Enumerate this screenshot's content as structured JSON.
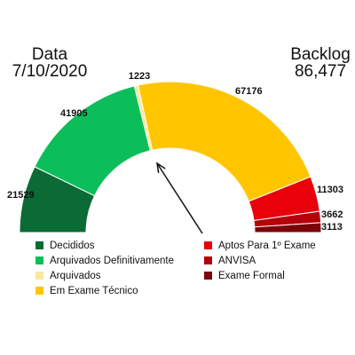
{
  "header": {
    "date_label": "Data",
    "date_value": "7/10/2020",
    "backlog_label": "Backlog",
    "backlog_value": "86,477"
  },
  "chart_data": {
    "type": "pie",
    "subtype": "half-donut gauge",
    "needle": true,
    "legend_position": "bottom",
    "slices": [
      {
        "label": "Decididos",
        "value": 21529,
        "color": "#0b6b35"
      },
      {
        "label": "Arquivados Definitivamente",
        "value": 41905,
        "color": "#0cbe5a"
      },
      {
        "label": "Arquivados",
        "value": 1223,
        "color": "#fce7a0"
      },
      {
        "label": "Em Exame Técnico",
        "value": 67176,
        "color": "#ffc600"
      },
      {
        "label": "Aptos Para 1º Exame",
        "value": 11303,
        "color": "#e8000b"
      },
      {
        "label": "ANVISA",
        "value": 3662,
        "color": "#b3000b"
      },
      {
        "label": "Exame Formal",
        "value": 3113,
        "color": "#7a0408"
      }
    ]
  }
}
